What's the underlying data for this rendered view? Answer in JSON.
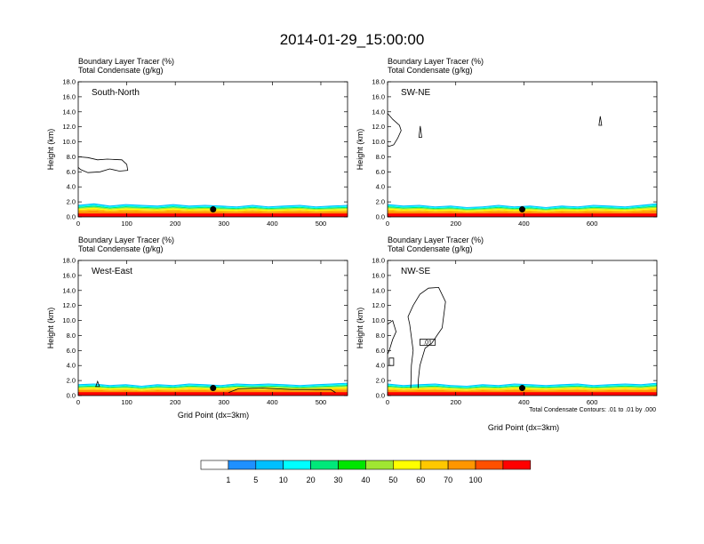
{
  "title": "2014-01-29_15:00:00",
  "panel_header": {
    "line1": "Boundary Layer Tracer   (%)",
    "line2": "Total Condensate   (g/kg)"
  },
  "y_axis_label": "Height (km)",
  "x_axis_label": "Grid Point (dx=3km)",
  "contour_note": "Total Condensate Contours: .01 to .01 by .000",
  "colorbar": {
    "labels": [
      "1",
      "5",
      "10",
      "20",
      "30",
      "40",
      "50",
      "60",
      "70",
      "100"
    ],
    "colors": [
      "#ffffff",
      "#1e90ff",
      "#00bfff",
      "#00ffff",
      "#00e87a",
      "#00e600",
      "#a0e632",
      "#ffff00",
      "#ffc800",
      "#ff9600",
      "#ff5000",
      "#ff0000"
    ]
  },
  "chart_data": [
    {
      "type": "heatmap",
      "name": "South-North",
      "xlim": [
        0,
        555
      ],
      "ylim": [
        0,
        18
      ],
      "xticks": [
        0,
        100,
        200,
        300,
        400,
        500
      ],
      "yticks": [
        "0.0",
        "2.0",
        "4.0",
        "6.0",
        "8.0",
        "10.0",
        "12.0",
        "14.0",
        "16.0",
        "18.0"
      ],
      "bl_top_km": [
        1.6,
        1.8,
        1.5,
        1.7,
        1.6,
        1.5,
        1.7,
        1.5,
        1.6,
        1.5,
        1.4,
        1.6,
        1.4,
        1.5,
        1.6,
        1.4,
        1.5,
        1.6
      ],
      "marker": {
        "x": 278,
        "y": 1.0
      },
      "contours": [
        {
          "value": "",
          "points": [
            [
              0,
              8.0
            ],
            [
              20,
              7.9
            ],
            [
              40,
              7.6
            ],
            [
              60,
              7.7
            ],
            [
              90,
              7.6
            ],
            [
              100,
              7.0
            ],
            [
              102,
              6.2
            ],
            [
              85,
              6.1
            ],
            [
              65,
              6.4
            ],
            [
              45,
              6.0
            ],
            [
              20,
              5.9
            ],
            [
              5,
              6.3
            ],
            [
              0,
              6.6
            ]
          ],
          "closed": false
        }
      ]
    },
    {
      "type": "heatmap",
      "name": "SW-NE",
      "xlim": [
        0,
        790
      ],
      "ylim": [
        0,
        18
      ],
      "xticks": [
        0,
        200,
        400,
        600
      ],
      "yticks": [
        "0.0",
        "2.0",
        "4.0",
        "6.0",
        "8.0",
        "10.0",
        "12.0",
        "14.0",
        "16.0",
        "18.0"
      ],
      "bl_top_km": [
        1.7,
        1.5,
        1.6,
        1.4,
        1.5,
        1.3,
        1.4,
        1.6,
        1.4,
        1.5,
        1.3,
        1.5,
        1.4,
        1.6,
        1.5,
        1.4,
        1.6,
        1.8
      ],
      "marker": {
        "x": 395,
        "y": 1.0
      },
      "contours": [
        {
          "value": "",
          "points": [
            [
              0,
              13.8
            ],
            [
              15,
              13.0
            ],
            [
              35,
              12.2
            ],
            [
              40,
              11.5
            ],
            [
              30,
              10.5
            ],
            [
              18,
              9.6
            ],
            [
              5,
              9.4
            ],
            [
              0,
              9.5
            ]
          ],
          "closed": false
        },
        {
          "value": "",
          "points": [
            [
              92,
              10.6
            ],
            [
              96,
              12.1
            ],
            [
              100,
              10.6
            ]
          ],
          "closed": true
        },
        {
          "value": "",
          "points": [
            [
              620,
              12.2
            ],
            [
              624,
              13.4
            ],
            [
              628,
              12.2
            ]
          ],
          "closed": true
        }
      ]
    },
    {
      "type": "heatmap",
      "name": "West-East",
      "xlim": [
        0,
        555
      ],
      "ylim": [
        0,
        18
      ],
      "xticks": [
        0,
        100,
        200,
        300,
        400,
        500
      ],
      "yticks": [
        "0.0",
        "2.0",
        "4.0",
        "6.0",
        "8.0",
        "10.0",
        "12.0",
        "14.0",
        "16.0",
        "18.0"
      ],
      "bl_top_km": [
        1.5,
        1.6,
        1.4,
        1.5,
        1.3,
        1.5,
        1.4,
        1.6,
        1.5,
        1.4,
        1.6,
        1.5,
        1.6,
        1.5,
        1.4,
        1.5,
        1.6,
        1.7
      ],
      "marker": {
        "x": 278,
        "y": 1.0
      },
      "contours": [
        {
          "value": "",
          "points": [
            [
              36,
              1.2
            ],
            [
              40,
              1.9
            ],
            [
              44,
              1.2
            ]
          ],
          "closed": true
        },
        {
          "value": "",
          "points": [
            [
              310,
              0.4
            ],
            [
              330,
              0.9
            ],
            [
              380,
              1.0
            ],
            [
              440,
              0.8
            ],
            [
              520,
              0.8
            ],
            [
              530,
              0.4
            ]
          ],
          "closed": false
        }
      ]
    },
    {
      "type": "heatmap",
      "name": "NW-SE",
      "xlim": [
        0,
        790
      ],
      "ylim": [
        0,
        18
      ],
      "xticks": [
        0,
        200,
        400,
        600
      ],
      "yticks": [
        "0.0",
        "2.0",
        "4.0",
        "6.0",
        "8.0",
        "10.0",
        "12.0",
        "14.0",
        "16.0",
        "18.0"
      ],
      "bl_top_km": [
        1.6,
        1.4,
        1.5,
        1.6,
        1.4,
        1.3,
        1.5,
        1.4,
        1.6,
        1.5,
        1.4,
        1.5,
        1.6,
        1.4,
        1.5,
        1.6,
        1.5,
        1.7
      ],
      "marker": {
        "x": 395,
        "y": 1.0
      },
      "contours": [
        {
          "value": "",
          "points": [
            [
              68,
              1.0
            ],
            [
              70,
              4.0
            ],
            [
              75,
              6.0
            ],
            [
              65,
              9.5
            ],
            [
              60,
              10.5
            ],
            [
              75,
              12.0
            ],
            [
              95,
              13.5
            ],
            [
              120,
              14.3
            ],
            [
              150,
              14.4
            ],
            [
              170,
              12.5
            ],
            [
              160,
              9.0
            ],
            [
              145,
              8.0
            ],
            [
              130,
              7.0
            ],
            [
              110,
              6.3
            ],
            [
              95,
              4.0
            ],
            [
              90,
              2.0
            ],
            [
              90,
              1.0
            ]
          ],
          "closed": false
        },
        {
          "value": "",
          "points": [
            [
              0,
              9.5
            ],
            [
              15,
              10.0
            ],
            [
              25,
              8.5
            ],
            [
              15,
              7.5
            ],
            [
              5,
              6.0
            ],
            [
              0,
              5.5
            ]
          ],
          "closed": false
        },
        {
          "value": "",
          "points": [
            [
              5,
              4.0
            ],
            [
              18,
              4.0
            ],
            [
              18,
              5.0
            ],
            [
              5,
              5.0
            ]
          ],
          "closed": true
        },
        {
          "value": ".01",
          "points": [
            [
              95,
              6.7
            ],
            [
              140,
              6.7
            ],
            [
              140,
              7.5
            ],
            [
              95,
              7.5
            ]
          ],
          "closed": true
        }
      ]
    }
  ]
}
